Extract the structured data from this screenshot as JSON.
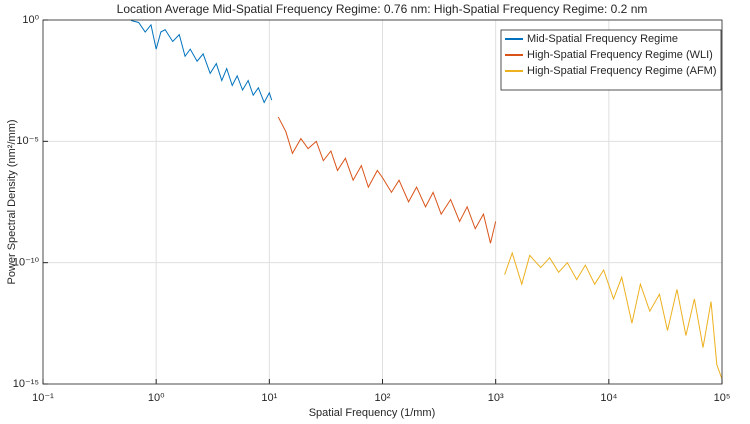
{
  "chart_data": {
    "type": "line",
    "title": "Location Average Mid-Spatial Frequency Regime: 0.76 nm: High-Spatial Frequency Regime: 0.2 nm",
    "x_label": "Spatial Frequency (1/mm)",
    "y_label": "Power Spectral Density (nm²/mm)",
    "log_x": true,
    "log_y": true,
    "grid": true,
    "legend": "top-right",
    "xlim": [
      0.1,
      100000
    ],
    "ylim": [
      1e-15,
      1
    ],
    "xticks": [
      {
        "value": 0.1,
        "label": "10⁻¹"
      },
      {
        "value": 1,
        "label": "10⁰"
      },
      {
        "value": 10,
        "label": "10¹"
      },
      {
        "value": 100,
        "label": "10²"
      },
      {
        "value": 1000,
        "label": "10³"
      },
      {
        "value": 10000,
        "label": "10⁴"
      },
      {
        "value": 100000,
        "label": "10⁵"
      }
    ],
    "yticks": [
      {
        "value": 1e-15,
        "label": "10⁻¹⁵"
      },
      {
        "value": 1e-10,
        "label": "10⁻¹⁰"
      },
      {
        "value": 1e-05,
        "label": "10⁻⁵"
      },
      {
        "value": 1,
        "label": "10⁰"
      }
    ],
    "series": [
      {
        "name": "Mid-Spatial Frequency Regime",
        "color": "#0072BD",
        "x": [
          0.6,
          0.7,
          0.8,
          0.9,
          1,
          1.1,
          1.2,
          1.4,
          1.6,
          1.8,
          2,
          2.3,
          2.6,
          3,
          3.4,
          3.8,
          4.2,
          4.7,
          5.2,
          5.8,
          6.5,
          7.2,
          8,
          9,
          10,
          10.5
        ],
        "values": [
          0.95,
          0.79,
          0.32,
          0.63,
          0.063,
          0.32,
          0.4,
          0.13,
          0.25,
          0.032,
          0.063,
          0.02,
          0.04,
          0.0063,
          0.016,
          0.0032,
          0.01,
          0.002,
          0.005,
          0.0013,
          0.0032,
          0.0008,
          0.0016,
          0.0004,
          0.001,
          0.0005
        ]
      },
      {
        "name": "High-Spatial Frequency Regime (WLI)",
        "color": "#D95319",
        "x": [
          12,
          14,
          16,
          19,
          22,
          26,
          30,
          35,
          40,
          47,
          55,
          65,
          75,
          90,
          100,
          120,
          140,
          170,
          200,
          240,
          280,
          330,
          400,
          480,
          560,
          660,
          780,
          900,
          1000
        ],
        "values": [
          0.0001,
          2.5e-05,
          3.2e-06,
          1.3e-05,
          5e-06,
          1e-05,
          1.6e-06,
          4e-06,
          6.3e-07,
          2e-06,
          2.5e-07,
          1e-06,
          1.3e-07,
          6.3e-07,
          3.2e-07,
          7.9e-08,
          2.5e-07,
          3.2e-08,
          1.3e-07,
          2e-08,
          7.9e-08,
          1e-08,
          4e-08,
          5e-09,
          2e-08,
          2.5e-09,
          1e-08,
          6.3e-10,
          5e-09
        ]
      },
      {
        "name": "High-Spatial Frequency Regime (AFM)",
        "color": "#EDB120",
        "x": [
          1200,
          1400,
          1700,
          2000,
          2500,
          3000,
          3600,
          4300,
          5200,
          6200,
          7500,
          9000,
          11000,
          13000,
          16000,
          19000,
          23000,
          28000,
          33000,
          40000,
          48000,
          57000,
          68000,
          80000,
          90000,
          100000
        ],
        "values": [
          3.2e-11,
          2.5e-10,
          1.3e-11,
          2e-10,
          6.3e-11,
          1.6e-10,
          4e-11,
          1e-10,
          2e-11,
          7.9e-11,
          1.3e-11,
          5e-11,
          3.2e-12,
          2.5e-11,
          3.2e-13,
          1.3e-11,
          1e-12,
          5e-12,
          1.6e-13,
          7.9e-12,
          1e-13,
          3.2e-12,
          3.2e-14,
          2.5e-12,
          6.3e-15,
          1.6e-15
        ]
      }
    ]
  }
}
